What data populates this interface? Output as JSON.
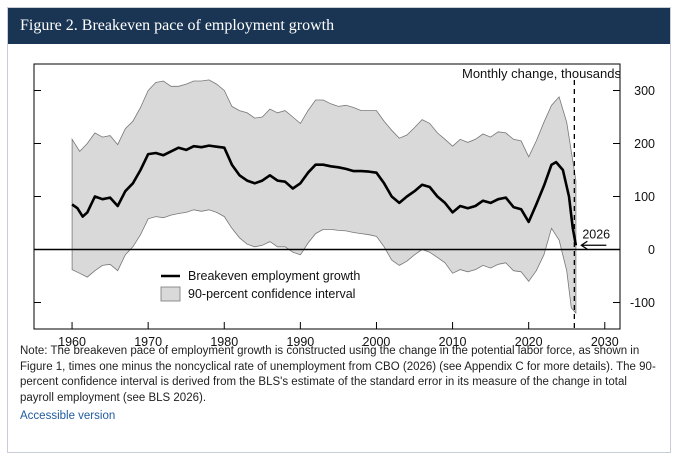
{
  "figure": {
    "title": "Figure 2. Breakeven pace of employment growth",
    "note": "Note: The breakeven pace of employment growth is constructed using the change in the potential labor force, as shown in Figure 1, times one minus the noncyclical rate of unemployment from CBO (2026) (see Appendix C for more details). The 90-percent confidence interval is derived from the BLS's estimate of the standard error in its measure of the change in total payroll employment (see BLS 2026).",
    "link": "Accessible version"
  },
  "colors": {
    "title_bg": "#1a3553",
    "band_fill": "#d9d9d9",
    "band_stroke": "#777777",
    "line": "#000000",
    "link": "#1f5a9e"
  },
  "chart_data": {
    "type": "line",
    "title": "Figure 2. Breakeven pace of employment growth",
    "ylabel": "Monthly change, thousands",
    "xlim": [
      1955,
      2032
    ],
    "ylim": [
      -150,
      350
    ],
    "xticks": [
      1960,
      1970,
      1980,
      1990,
      2000,
      2010,
      2020,
      2030
    ],
    "yticks": [
      -100,
      0,
      100,
      200,
      300
    ],
    "ytick_labels": [
      "-100",
      "0",
      "100",
      "200",
      "300"
    ],
    "legend_position": "center-left",
    "grid": false,
    "series": [
      {
        "name": "Breakeven employment growth",
        "x": [
          1960,
          1960.7,
          1961.4,
          1962,
          1963,
          1964,
          1965,
          1966,
          1967,
          1968,
          1969,
          1970,
          1971,
          1972,
          1973,
          1974,
          1975,
          1976,
          1977,
          1978,
          1979,
          1980,
          1981,
          1982,
          1983,
          1984,
          1985,
          1986,
          1987,
          1988,
          1989,
          1990,
          1991,
          1992,
          1993,
          1994,
          1995,
          1996,
          1997,
          1998,
          1999,
          2000,
          2001,
          2002,
          2003,
          2004,
          2005,
          2006,
          2007,
          2008,
          2009,
          2010,
          2011,
          2012,
          2013,
          2014,
          2015,
          2016,
          2017,
          2018,
          2019,
          2020,
          2021,
          2022,
          2023,
          2023.6,
          2024.5,
          2025.3,
          2025.8,
          2026.2
        ],
        "y": [
          85,
          78,
          62,
          70,
          100,
          95,
          98,
          82,
          110,
          125,
          150,
          180,
          182,
          178,
          185,
          192,
          188,
          195,
          193,
          196,
          194,
          192,
          160,
          140,
          130,
          125,
          130,
          140,
          130,
          128,
          115,
          125,
          145,
          160,
          160,
          157,
          155,
          152,
          148,
          148,
          147,
          145,
          125,
          100,
          88,
          100,
          110,
          122,
          118,
          100,
          88,
          70,
          82,
          78,
          82,
          92,
          88,
          95,
          98,
          80,
          76,
          52,
          85,
          120,
          160,
          165,
          150,
          100,
          40,
          8
        ]
      },
      {
        "name": "90-percent confidence interval",
        "x": [
          1960,
          1961,
          1962,
          1963,
          1964,
          1965,
          1966,
          1967,
          1968,
          1969,
          1970,
          1971,
          1972,
          1973,
          1974,
          1975,
          1976,
          1977,
          1978,
          1979,
          1980,
          1981,
          1982,
          1983,
          1984,
          1985,
          1986,
          1987,
          1988,
          1989,
          1990,
          1991,
          1992,
          1993,
          1994,
          1995,
          1996,
          1997,
          1998,
          1999,
          2000,
          2001,
          2002,
          2003,
          2004,
          2005,
          2006,
          2007,
          2008,
          2009,
          2010,
          2011,
          2012,
          2013,
          2014,
          2015,
          2016,
          2017,
          2018,
          2019,
          2020,
          2021,
          2022,
          2023,
          2024,
          2025,
          2025.6,
          2026.2
        ],
        "upper": [
          208,
          185,
          200,
          220,
          212,
          215,
          198,
          228,
          242,
          268,
          300,
          315,
          318,
          308,
          308,
          312,
          318,
          318,
          320,
          312,
          300,
          270,
          262,
          258,
          248,
          250,
          265,
          258,
          262,
          250,
          238,
          262,
          282,
          282,
          275,
          270,
          272,
          268,
          262,
          262,
          262,
          242,
          225,
          210,
          216,
          230,
          245,
          238,
          220,
          208,
          195,
          208,
          202,
          208,
          218,
          212,
          222,
          220,
          208,
          205,
          175,
          205,
          240,
          272,
          288,
          240,
          185,
          130
        ],
        "lower": [
          -38,
          -45,
          -52,
          -40,
          -30,
          -28,
          -40,
          -10,
          5,
          28,
          58,
          62,
          60,
          65,
          68,
          70,
          75,
          72,
          75,
          70,
          62,
          40,
          22,
          10,
          5,
          8,
          15,
          5,
          5,
          -5,
          -10,
          12,
          30,
          38,
          38,
          36,
          35,
          32,
          30,
          28,
          25,
          5,
          -20,
          -30,
          -22,
          -10,
          0,
          -5,
          -15,
          -25,
          -45,
          -38,
          -42,
          -38,
          -30,
          -35,
          -28,
          -25,
          -40,
          -42,
          -60,
          -40,
          -10,
          40,
          18,
          -40,
          -110,
          -120
        ]
      }
    ],
    "annotations": [
      {
        "text": "2026",
        "x": 2026,
        "y": 8,
        "kind": "arrow-label"
      }
    ],
    "vertical_marker": {
      "x": 2026,
      "style": "dashed"
    }
  }
}
